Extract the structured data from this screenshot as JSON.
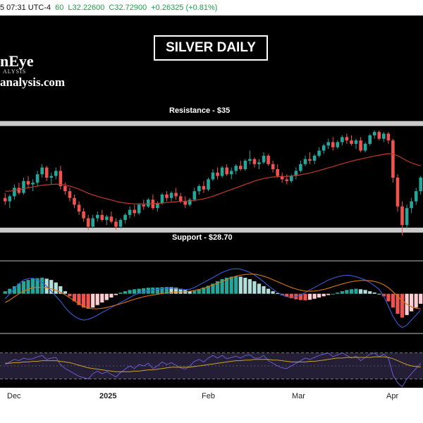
{
  "header": {
    "timestamp_fragment": "5 07:31 UTC-4",
    "ohlc": [
      {
        "key": "open_fragment",
        "text": "60",
        "color": "#16a34a"
      },
      {
        "key": "low",
        "text": "L32.22600",
        "color": "#16a34a"
      },
      {
        "key": "close",
        "text": "C32.72900",
        "color": "#16a34a"
      },
      {
        "key": "change",
        "text": "+0.26325 (+0.81%)",
        "color": "#16a34a"
      }
    ]
  },
  "overlay": {
    "title": "SILVER DAILY",
    "logo_line1": "nEye",
    "logo_subline": "ALYSIS",
    "logo_line2": "analysis.com",
    "resistance_label": "Resistance - $35",
    "support_label": "Support - $28.70"
  },
  "colors": {
    "up": "#26a69a",
    "down": "#ef5350",
    "ma": "#c0392b",
    "level_band": "#e0e0e0",
    "macd_line": "#3b5bdb",
    "signal_line": "#d97706",
    "rsi_line": "#6a5acd",
    "rsi_ma": "#c9a227"
  },
  "chart_data": [
    {
      "type": "candlestick",
      "title": "SILVER DAILY",
      "x": [
        "Dec",
        "2025",
        "Feb",
        "Mar",
        "Apr"
      ],
      "ylim": [
        28.0,
        35.4
      ],
      "levels": [
        {
          "name": "Resistance - $35",
          "value": 35.0
        },
        {
          "name": "Support - $28.70",
          "value": 28.7
        }
      ],
      "candles": [
        [
          30.6,
          30.9,
          30.2,
          30.4
        ],
        [
          30.4,
          30.8,
          30.0,
          30.7
        ],
        [
          30.7,
          31.4,
          30.5,
          31.2
        ],
        [
          31.2,
          31.5,
          30.8,
          30.9
        ],
        [
          30.9,
          31.8,
          30.8,
          31.6
        ],
        [
          31.6,
          31.9,
          31.2,
          31.4
        ],
        [
          31.4,
          31.7,
          31.0,
          31.5
        ],
        [
          31.5,
          32.2,
          31.3,
          32.0
        ],
        [
          32.0,
          32.6,
          31.8,
          32.4
        ],
        [
          32.4,
          32.5,
          31.6,
          31.8
        ],
        [
          31.8,
          32.1,
          31.4,
          31.9
        ],
        [
          31.9,
          32.4,
          31.7,
          32.2
        ],
        [
          32.2,
          32.5,
          31.1,
          31.3
        ],
        [
          31.3,
          31.5,
          30.8,
          31.0
        ],
        [
          31.0,
          31.2,
          30.4,
          30.6
        ],
        [
          30.6,
          30.8,
          30.0,
          30.2
        ],
        [
          30.2,
          30.4,
          29.6,
          29.8
        ],
        [
          29.8,
          30.0,
          29.2,
          29.4
        ],
        [
          29.4,
          29.6,
          28.7,
          28.9
        ],
        [
          28.9,
          29.6,
          28.8,
          29.4
        ],
        [
          29.4,
          29.8,
          29.2,
          29.6
        ],
        [
          29.6,
          29.9,
          29.2,
          29.3
        ],
        [
          29.3,
          29.6,
          29.0,
          29.5
        ],
        [
          29.5,
          29.8,
          29.1,
          29.2
        ],
        [
          29.2,
          29.4,
          28.7,
          28.9
        ],
        [
          28.9,
          29.4,
          28.8,
          29.3
        ],
        [
          29.3,
          29.7,
          29.1,
          29.6
        ],
        [
          29.6,
          30.1,
          29.4,
          29.9
        ],
        [
          29.9,
          30.2,
          29.5,
          29.7
        ],
        [
          29.7,
          30.3,
          29.6,
          30.2
        ],
        [
          30.2,
          30.5,
          29.9,
          30.1
        ],
        [
          30.1,
          30.6,
          30.0,
          30.5
        ],
        [
          30.5,
          30.8,
          29.9,
          30.0
        ],
        [
          30.0,
          30.4,
          29.8,
          30.3
        ],
        [
          30.3,
          30.9,
          30.2,
          30.8
        ],
        [
          30.8,
          31.0,
          30.4,
          30.6
        ],
        [
          30.6,
          31.0,
          30.4,
          30.9
        ],
        [
          30.9,
          31.2,
          30.5,
          30.7
        ],
        [
          30.7,
          30.9,
          30.3,
          30.4
        ],
        [
          30.4,
          30.7,
          30.0,
          30.2
        ],
        [
          30.2,
          30.6,
          30.1,
          30.5
        ],
        [
          30.5,
          31.2,
          30.4,
          31.0
        ],
        [
          31.0,
          31.4,
          30.8,
          31.3
        ],
        [
          31.3,
          31.6,
          30.9,
          31.1
        ],
        [
          31.1,
          31.8,
          31.0,
          31.7
        ],
        [
          31.7,
          32.3,
          31.6,
          32.1
        ],
        [
          32.1,
          32.4,
          31.7,
          31.9
        ],
        [
          31.9,
          32.5,
          31.8,
          32.4
        ],
        [
          32.4,
          32.6,
          31.9,
          32.0
        ],
        [
          32.0,
          32.4,
          31.7,
          32.2
        ],
        [
          32.2,
          32.6,
          32.0,
          32.5
        ],
        [
          32.5,
          32.8,
          32.2,
          32.3
        ],
        [
          32.3,
          32.9,
          32.2,
          32.8
        ],
        [
          32.8,
          33.4,
          32.6,
          32.9
        ],
        [
          32.9,
          33.0,
          32.4,
          32.6
        ],
        [
          32.6,
          32.9,
          32.3,
          32.7
        ],
        [
          32.7,
          33.3,
          32.6,
          33.1
        ],
        [
          33.1,
          33.2,
          32.5,
          32.6
        ],
        [
          32.6,
          32.8,
          32.1,
          32.3
        ],
        [
          32.3,
          32.6,
          31.8,
          31.9
        ],
        [
          31.9,
          32.1,
          31.5,
          31.7
        ],
        [
          31.7,
          32.0,
          31.4,
          31.6
        ],
        [
          31.6,
          32.0,
          31.5,
          31.9
        ],
        [
          31.9,
          32.4,
          31.7,
          32.2
        ],
        [
          32.2,
          32.8,
          32.1,
          32.6
        ],
        [
          32.6,
          33.1,
          32.5,
          32.9
        ],
        [
          32.9,
          33.3,
          32.6,
          32.8
        ],
        [
          32.8,
          33.2,
          32.6,
          33.1
        ],
        [
          33.1,
          33.6,
          33.0,
          33.4
        ],
        [
          33.4,
          33.8,
          33.2,
          33.7
        ],
        [
          33.7,
          34.1,
          33.5,
          33.9
        ],
        [
          33.9,
          34.2,
          33.4,
          33.6
        ],
        [
          33.6,
          34.0,
          33.5,
          33.9
        ],
        [
          33.9,
          34.3,
          33.7,
          34.2
        ],
        [
          34.2,
          34.4,
          33.8,
          34.0
        ],
        [
          34.0,
          34.3,
          33.7,
          33.8
        ],
        [
          33.8,
          34.1,
          33.5,
          34.0
        ],
        [
          34.0,
          34.2,
          33.3,
          33.4
        ],
        [
          33.4,
          33.9,
          33.3,
          33.8
        ],
        [
          33.8,
          34.4,
          33.7,
          34.3
        ],
        [
          34.3,
          34.6,
          34.1,
          34.5
        ],
        [
          34.5,
          34.6,
          34.0,
          34.1
        ],
        [
          34.1,
          34.5,
          33.9,
          34.4
        ],
        [
          34.4,
          34.5,
          33.8,
          34.0
        ],
        [
          34.0,
          34.1,
          31.5,
          31.8
        ],
        [
          31.8,
          32.0,
          29.8,
          30.1
        ],
        [
          30.1,
          30.4,
          28.4,
          29.0
        ],
        [
          29.0,
          30.2,
          28.8,
          30.0
        ],
        [
          30.0,
          30.6,
          29.7,
          30.4
        ],
        [
          30.4,
          31.2,
          30.2,
          31.0
        ],
        [
          31.0,
          31.9,
          30.8,
          31.8
        ]
      ],
      "moving_average": [
        31.0,
        31.0,
        31.05,
        31.1,
        31.15,
        31.2,
        31.25,
        31.3,
        31.35,
        31.38,
        31.4,
        31.42,
        31.4,
        31.36,
        31.3,
        31.22,
        31.12,
        31.0,
        30.88,
        30.78,
        30.7,
        30.62,
        30.55,
        30.48,
        30.4,
        30.34,
        30.3,
        30.27,
        30.25,
        30.24,
        30.24,
        30.25,
        30.26,
        30.28,
        30.3,
        30.33,
        30.36,
        30.38,
        30.4,
        30.41,
        30.42,
        30.45,
        30.5,
        30.55,
        30.62,
        30.7,
        30.8,
        30.9,
        31.0,
        31.1,
        31.2,
        31.3,
        31.4,
        31.5,
        31.6,
        31.68,
        31.75,
        31.8,
        31.84,
        31.86,
        31.87,
        31.88,
        31.9,
        31.93,
        31.97,
        32.02,
        32.08,
        32.15,
        32.22,
        32.3,
        32.38,
        32.46,
        32.54,
        32.62,
        32.7,
        32.77,
        32.84,
        32.9,
        32.96,
        33.02,
        33.08,
        33.13,
        33.18,
        33.22,
        33.2,
        33.1,
        32.95,
        32.8,
        32.68,
        32.58,
        32.5
      ]
    },
    {
      "type": "bar",
      "title": "",
      "series": [
        {
          "name": "",
          "values": [
            0.1,
            0.2,
            0.3,
            0.4,
            0.5,
            0.55,
            0.6,
            0.62,
            0.64,
            0.6,
            0.55,
            0.45,
            0.3,
            0.1,
            -0.1,
            -0.3,
            -0.45,
            -0.55,
            -0.6,
            -0.55,
            -0.45,
            -0.35,
            -0.25,
            -0.15,
            -0.05,
            0.05,
            0.1,
            0.15,
            0.18,
            0.2,
            0.22,
            0.24,
            0.25,
            0.25,
            0.26,
            0.27,
            0.26,
            0.24,
            0.2,
            0.15,
            0.1,
            0.12,
            0.18,
            0.25,
            0.32,
            0.4,
            0.5,
            0.58,
            0.64,
            0.68,
            0.7,
            0.68,
            0.64,
            0.58,
            0.5,
            0.4,
            0.3,
            0.2,
            0.1,
            0.02,
            -0.06,
            -0.12,
            -0.18,
            -0.22,
            -0.25,
            -0.26,
            -0.24,
            -0.2,
            -0.15,
            -0.1,
            -0.05,
            0.0,
            0.05,
            0.1,
            0.15,
            0.18,
            0.2,
            0.18,
            0.15,
            0.1,
            0.05,
            0.0,
            -0.1,
            -0.3,
            -0.55,
            -0.8,
            -0.95,
            -0.85,
            -0.7,
            -0.55,
            -0.4
          ]
        },
        {
          "name": "",
          "values": [
            -0.2,
            0.0,
            0.2,
            0.4,
            0.55,
            0.6,
            0.62,
            0.55,
            0.45,
            0.3,
            0.1,
            -0.1,
            -0.3,
            -0.55,
            -0.75,
            -0.9,
            -1.0,
            -1.05,
            -1.02,
            -0.95,
            -0.85,
            -0.75,
            -0.65,
            -0.55,
            -0.45,
            -0.35,
            -0.25,
            -0.15,
            -0.05,
            0.02,
            0.08,
            0.12,
            0.15,
            0.18,
            0.2,
            0.22,
            0.22,
            0.2,
            0.18,
            0.16,
            0.18,
            0.25,
            0.35,
            0.45,
            0.55,
            0.65,
            0.75,
            0.85,
            0.92,
            0.98,
            1.0,
            0.98,
            0.92,
            0.85,
            0.75,
            0.62,
            0.48,
            0.32,
            0.18,
            0.05,
            -0.05,
            -0.12,
            -0.15,
            -0.12,
            -0.05,
            0.05,
            0.15,
            0.25,
            0.35,
            0.45,
            0.55,
            0.62,
            0.68,
            0.72,
            0.74,
            0.72,
            0.68,
            0.62,
            0.55,
            0.45,
            0.32,
            0.18,
            -0.1,
            -0.5,
            -0.9,
            -1.2,
            -1.35,
            -1.25,
            -1.05,
            -0.85,
            -0.65
          ]
        },
        {
          "name": "",
          "values": [
            -0.35,
            -0.25,
            -0.12,
            0.0,
            0.1,
            0.18,
            0.24,
            0.26,
            0.26,
            0.24,
            0.2,
            0.14,
            0.06,
            -0.04,
            -0.16,
            -0.28,
            -0.4,
            -0.5,
            -0.56,
            -0.6,
            -0.6,
            -0.58,
            -0.55,
            -0.5,
            -0.45,
            -0.4,
            -0.34,
            -0.28,
            -0.22,
            -0.17,
            -0.12,
            -0.08,
            -0.05,
            -0.02,
            0.01,
            0.03,
            0.05,
            0.07,
            0.08,
            0.08,
            0.1,
            0.13,
            0.17,
            0.22,
            0.28,
            0.35,
            0.42,
            0.5,
            0.57,
            0.64,
            0.7,
            0.74,
            0.77,
            0.78,
            0.78,
            0.75,
            0.7,
            0.64,
            0.56,
            0.48,
            0.4,
            0.32,
            0.25,
            0.19,
            0.14,
            0.11,
            0.1,
            0.11,
            0.13,
            0.17,
            0.22,
            0.28,
            0.34,
            0.39,
            0.44,
            0.48,
            0.51,
            0.53,
            0.53,
            0.52,
            0.49,
            0.44,
            0.36,
            0.24,
            0.08,
            -0.1,
            -0.28,
            -0.42,
            -0.52,
            -0.58,
            -0.6
          ]
        }
      ]
    },
    {
      "type": "line",
      "title": "",
      "series": [
        {
          "name": "",
          "values": [
            52,
            56,
            60,
            58,
            62,
            60,
            61,
            64,
            66,
            60,
            62,
            63,
            52,
            46,
            42,
            38,
            34,
            32,
            30,
            38,
            42,
            38,
            41,
            37,
            33,
            40,
            45,
            50,
            46,
            52,
            50,
            54,
            46,
            50,
            56,
            52,
            55,
            51,
            47,
            45,
            50,
            57,
            60,
            56,
            62,
            66,
            62,
            66,
            61,
            63,
            65,
            62,
            66,
            67,
            62,
            62,
            66,
            58,
            54,
            50,
            47,
            46,
            50,
            54,
            58,
            62,
            60,
            63,
            66,
            68,
            70,
            64,
            67,
            70,
            66,
            62,
            65,
            58,
            63,
            68,
            70,
            64,
            68,
            62,
            36,
            24,
            18,
            30,
            38,
            46,
            54
          ]
        },
        {
          "name": "",
          "values": [
            54,
            54,
            55,
            55,
            56,
            56,
            57,
            57,
            58,
            58,
            58,
            58,
            57,
            56,
            55,
            53,
            51,
            49,
            47,
            46,
            45,
            44,
            43,
            42,
            41,
            41,
            41,
            41,
            42,
            42,
            43,
            44,
            44,
            45,
            46,
            47,
            48,
            48,
            48,
            48,
            48,
            49,
            50,
            51,
            52,
            53,
            54,
            55,
            56,
            57,
            58,
            58,
            59,
            59,
            60,
            60,
            60,
            60,
            59,
            59,
            58,
            57,
            56,
            56,
            56,
            56,
            57,
            57,
            58,
            59,
            60,
            61,
            62,
            62,
            63,
            63,
            63,
            63,
            63,
            63,
            64,
            64,
            64,
            63,
            61,
            58,
            55,
            52,
            50,
            49,
            48
          ]
        }
      ]
    }
  ]
}
